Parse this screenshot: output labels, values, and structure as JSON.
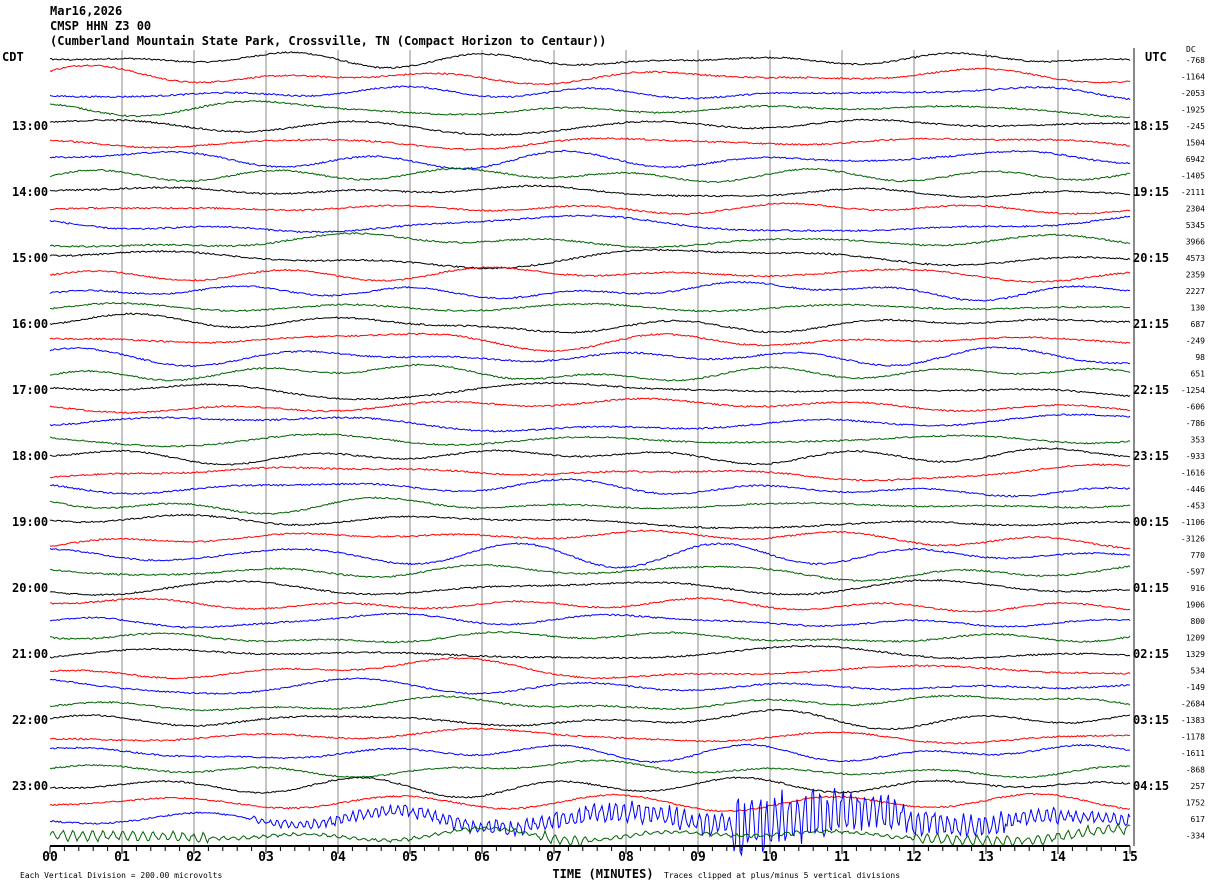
{
  "header": {
    "date": "Mar16,2026",
    "station": "CMSP HHN Z3 00",
    "location": "(Cumberland Mountain State Park, Crossville, TN (Compact Horizon to Centaur))"
  },
  "chart_data": {
    "type": "line",
    "title": "CMSP HHN Z3 00 helicorder",
    "xlabel": "TIME (MINUTES)",
    "xlim": [
      0,
      15
    ],
    "x_ticks": [
      "00",
      "01",
      "02",
      "03",
      "04",
      "05",
      "06",
      "07",
      "08",
      "09",
      "10",
      "11",
      "12",
      "13",
      "14",
      "15"
    ],
    "left_axis_label": "CDT",
    "right_axis_label": "UTC",
    "dc_label": "DC",
    "left_hour_labels": [
      "13:00",
      "14:00",
      "15:00",
      "16:00",
      "17:00",
      "18:00",
      "19:00",
      "20:00",
      "21:00",
      "22:00",
      "23:00"
    ],
    "right_hour_labels": [
      "18:15",
      "19:15",
      "20:15",
      "21:15",
      "22:15",
      "23:15",
      "00:15",
      "01:15",
      "02:15",
      "03:15",
      "04:15"
    ],
    "trace_colors": [
      "#000000",
      "#ff0000",
      "#0000ff",
      "#006400"
    ],
    "trace_minutes_per_line": 15,
    "dc_offsets": [
      -768,
      -1164,
      -2053,
      -1925,
      -245,
      1504,
      6942,
      -1405,
      -2111,
      2304,
      5345,
      3966,
      4573,
      2359,
      2227,
      130,
      687,
      -249,
      98,
      651,
      -1254,
      -606,
      -786,
      353,
      -933,
      -1616,
      -446,
      -453,
      -1106,
      -3126,
      770,
      -597,
      916,
      1906,
      800,
      1209,
      1329,
      534,
      -149,
      -2684,
      -1383,
      -1178,
      -1611,
      -868,
      257,
      1752,
      617,
      -334
    ],
    "event": {
      "trace_index": 46,
      "start_minute": 2.8,
      "peak_minute": 9.5
    },
    "footer_left": "Each Vertical Division =  200.00 microvolts",
    "footer_right": "Traces clipped at plus/minus 5 vertical divisions"
  }
}
